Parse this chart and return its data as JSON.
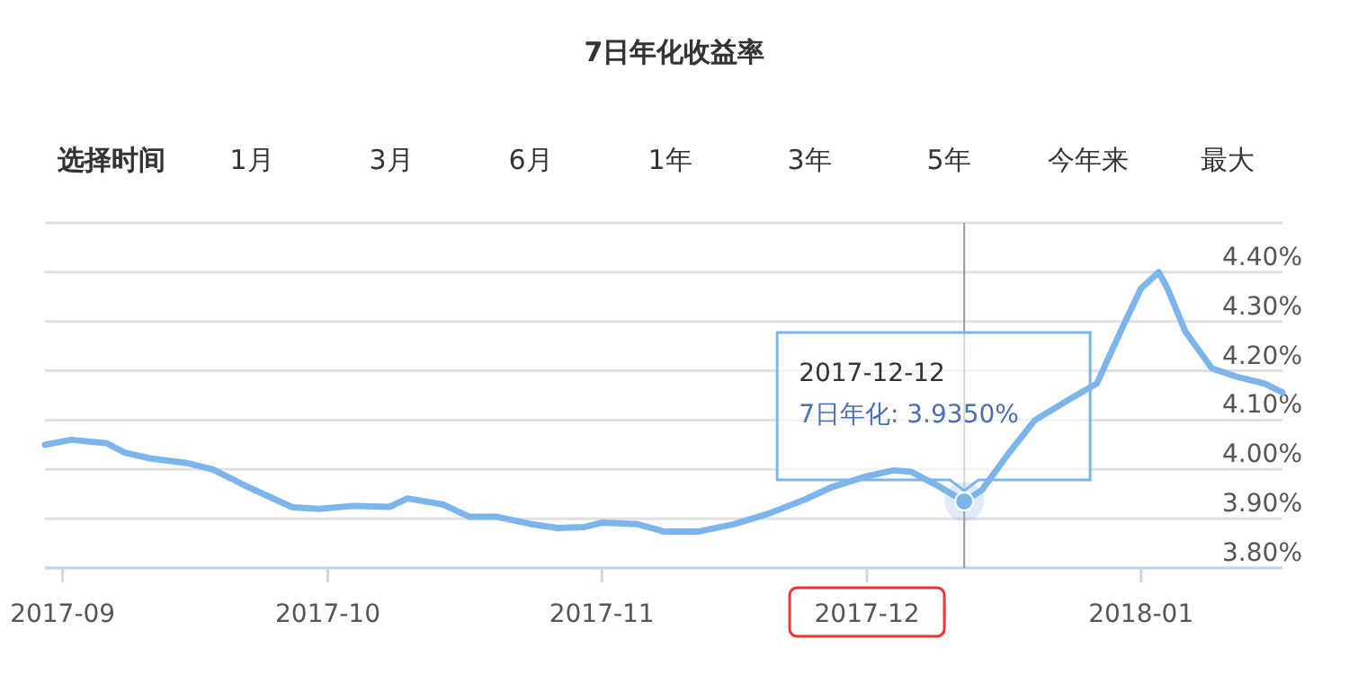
{
  "chart_data": {
    "type": "line",
    "title": "7日年化收益率",
    "x": [
      "2017-08-30",
      "2017-09-02",
      "2017-09-06",
      "2017-09-08",
      "2017-09-11",
      "2017-09-15",
      "2017-09-18",
      "2017-09-22",
      "2017-09-27",
      "2017-09-30",
      "2017-10-04",
      "2017-10-08",
      "2017-10-10",
      "2017-10-14",
      "2017-10-17",
      "2017-10-20",
      "2017-10-24",
      "2017-10-27",
      "2017-10-30",
      "2017-11-01",
      "2017-11-05",
      "2017-11-08",
      "2017-11-12",
      "2017-11-16",
      "2017-11-20",
      "2017-11-24",
      "2017-11-27",
      "2017-12-01",
      "2017-12-04",
      "2017-12-06",
      "2017-12-09",
      "2017-12-12",
      "2017-12-14",
      "2017-12-17",
      "2017-12-20",
      "2017-12-24",
      "2017-12-27",
      "2017-12-30",
      "2018-01-01",
      "2018-01-03",
      "2018-01-04",
      "2018-01-06",
      "2018-01-09",
      "2018-01-12",
      "2018-01-15",
      "2018-01-17"
    ],
    "series": [
      {
        "color": "#7cb5ec",
        "values": [
          4.05,
          4.06,
          4.053,
          4.034,
          4.022,
          4.013,
          4.0,
          3.964,
          3.923,
          3.92,
          3.926,
          3.924,
          3.941,
          3.929,
          3.904,
          3.904,
          3.889,
          3.881,
          3.883,
          3.892,
          3.889,
          3.874,
          3.874,
          3.889,
          3.911,
          3.939,
          3.964,
          3.986,
          3.998,
          3.995,
          3.967,
          3.935,
          3.958,
          4.032,
          4.1,
          4.143,
          4.174,
          4.292,
          4.367,
          4.4,
          4.367,
          4.28,
          4.205,
          4.187,
          4.174,
          4.156
        ]
      }
    ],
    "xlim": [
      "2017-08-30",
      "2018-01-17"
    ],
    "xticks": [
      {
        "value": "2017-09-01",
        "label": "2017-09"
      },
      {
        "value": "2017-10-01",
        "label": "2017-10"
      },
      {
        "value": "2017-11-01",
        "label": "2017-11"
      },
      {
        "value": "2017-12-01",
        "label": "2017-12"
      },
      {
        "value": "2018-01-01",
        "label": "2018-01"
      }
    ],
    "ylim": [
      3.8,
      4.5
    ],
    "yticks": [
      {
        "value": 3.8,
        "label": "3.80%"
      },
      {
        "value": 3.9,
        "label": "3.90%"
      },
      {
        "value": 4.0,
        "label": "4.00%"
      },
      {
        "value": 4.1,
        "label": "4.10%"
      },
      {
        "value": 4.2,
        "label": "4.20%"
      },
      {
        "value": 4.3,
        "label": "4.30%"
      },
      {
        "value": 4.4,
        "label": "4.40%"
      },
      {
        "value": 4.5,
        "label": null
      }
    ],
    "grid": "y",
    "marker": "none",
    "line_style": "solid",
    "ref_lines": [
      {
        "axis": "x",
        "value": "2017-12-12",
        "color": "#999999"
      }
    ],
    "annotations": [
      "选择时间",
      "1月",
      "3月",
      "6月",
      "1年",
      "3年",
      "5年",
      "今年来",
      "最大",
      {
        "text": "2017-12-12\n7日年化: 3.9350%",
        "x": "2017-12-12",
        "y": 3.935
      }
    ]
  }
}
